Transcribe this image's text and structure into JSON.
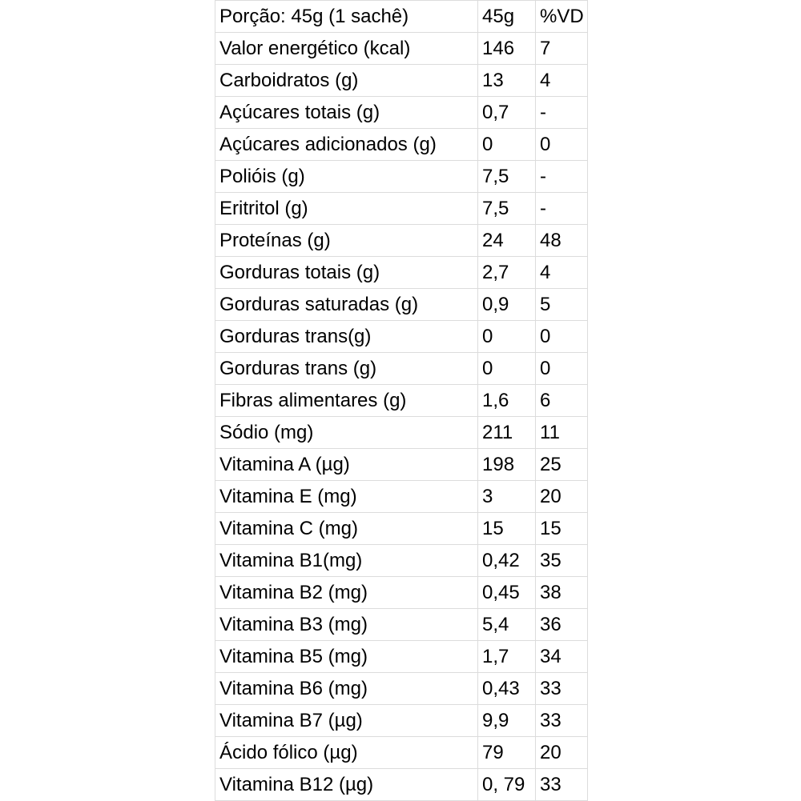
{
  "table": {
    "rows": [
      [
        "Porção: 45g (1 sachê)",
        "45g",
        "%VD"
      ],
      [
        "Valor energético (kcal)",
        "146",
        "7"
      ],
      [
        "Carboidratos (g)",
        "13",
        "4"
      ],
      [
        "Açúcares totais (g)",
        "0,7",
        "-"
      ],
      [
        "Açúcares adicionados (g)",
        "0",
        "0"
      ],
      [
        "Polióis (g)",
        "7,5",
        "-"
      ],
      [
        "Eritritol (g)",
        "7,5",
        "-"
      ],
      [
        "Proteínas (g)",
        "24",
        "48"
      ],
      [
        "Gorduras totais (g)",
        "2,7",
        "4"
      ],
      [
        "Gorduras saturadas (g)",
        "0,9",
        "5"
      ],
      [
        "Gorduras trans(g)",
        "0",
        "0"
      ],
      [
        "Gorduras trans (g)",
        "0",
        "0"
      ],
      [
        "Fibras alimentares (g)",
        "1,6",
        "6"
      ],
      [
        "Sódio (mg)",
        "211",
        "11"
      ],
      [
        "Vitamina A (µg)",
        "198",
        "25"
      ],
      [
        "Vitamina E (mg)",
        "3",
        "20"
      ],
      [
        "Vitamina C (mg)",
        "15",
        "15"
      ],
      [
        "Vitamina B1(mg)",
        "0,42",
        "35"
      ],
      [
        "Vitamina B2 (mg)",
        "0,45",
        "38"
      ],
      [
        "Vitamina B3 (mg)",
        "5,4",
        "36"
      ],
      [
        "Vitamina B5 (mg)",
        "1,7",
        "34"
      ],
      [
        "Vitamina B6 (mg)",
        "0,43",
        "33"
      ],
      [
        "Vitamina B7 (µg)",
        "9,9",
        "33"
      ],
      [
        "Ácido fólico (µg)",
        "79",
        "20"
      ],
      [
        "Vitamina B12 (µg)",
        "0, 79",
        "33"
      ]
    ]
  }
}
